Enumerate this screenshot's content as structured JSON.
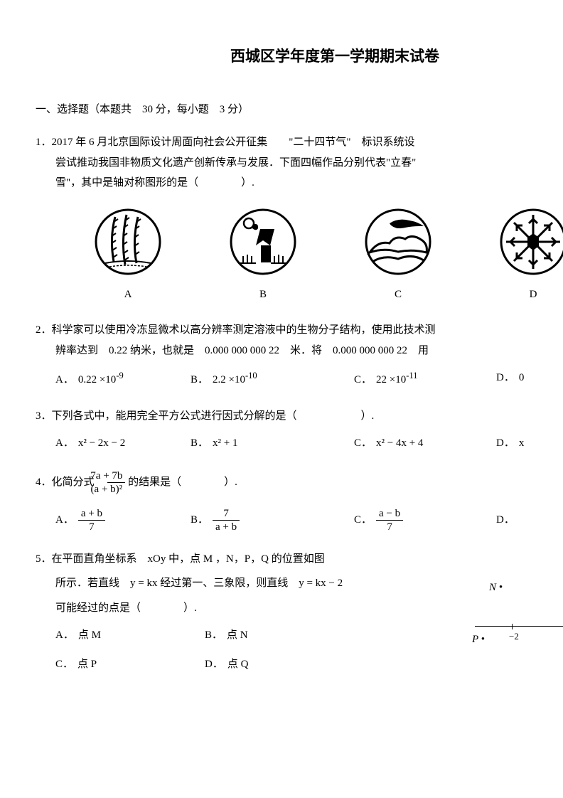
{
  "title": "西城区学年度第一学期期末试卷",
  "section1": "一、选择题（本题共　30 分，每小题　3 分）",
  "q1": {
    "n": "1．",
    "l1": "2017 年 6 月北京国际设计周面向社会公开征集　　\"二十四节气\"　标识系统设",
    "l2": "尝试推动我国非物质文化遗产创新传承与发展．下面四幅作品分别代表\"立春\"",
    "l3": "雪\"，其中是轴对称图形的是（　　　　）.",
    "labels": {
      "a": "A",
      "b": "B",
      "c": "C",
      "d": "D"
    }
  },
  "q2": {
    "n": "2．",
    "l1": "科学家可以使用冷冻显微术以高分辨率测定溶液中的生物分子结构，使用此技术测",
    "l2": "辨率达到　0.22 纳米，也就是　0.000 000 000 22　米．将　0.000 000 000 22　用",
    "a": {
      "pre": "0.22 ×10",
      "sup": "-9"
    },
    "b": {
      "pre": "2.2 ×10",
      "sup": "-10"
    },
    "c": {
      "pre": "22 ×10",
      "sup": "-11"
    },
    "d": {
      "pre": "0"
    }
  },
  "q3": {
    "n": "3．",
    "l1": "下列各式中，能用完全平方公式进行因式分解的是（　　　　　　）.",
    "a": "x² − 2x − 2",
    "b": "x² + 1",
    "c": "x² − 4x + 4",
    "d": "x"
  },
  "q4": {
    "n": "4．",
    "pre": "化简分式",
    "post": "的结果是（　　　　）.",
    "mainfrac": {
      "num": "7a + 7b",
      "den": "(a + b)²"
    },
    "a": {
      "num": "a + b",
      "den": "7"
    },
    "b": {
      "num": "7",
      "den": "a + b"
    },
    "c": {
      "num": "a − b",
      "den": "7"
    },
    "dlabel": "D．"
  },
  "q5": {
    "n": "5．",
    "l1": "在平面直角坐标系　xOy 中，点 M ，N，P，Q 的位置如图",
    "l2": "所示．若直线　y = kx 经过第一、三象限，则直线　y = kx − 2",
    "l3": "可能经过的点是（　　　　）.",
    "a": "点 M",
    "b": "点 N",
    "c": "点 P",
    "d": "点 Q",
    "labelN": "N •",
    "labelP": "P •",
    "tick": "−2"
  },
  "labels": {
    "A": "A．",
    "B": "B．",
    "C": "C．",
    "D": "D．"
  },
  "widths": {
    "q2a": 180,
    "q2b": 220,
    "q2c": 190,
    "q3a": 180,
    "q3b": 220,
    "q3c": 190,
    "q4a": 180,
    "q4b": 220,
    "q4c": 190,
    "q5": 200
  }
}
